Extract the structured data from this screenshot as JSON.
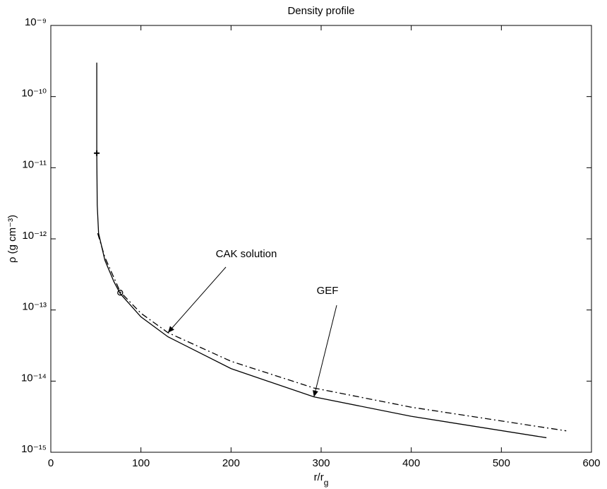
{
  "chart_data": {
    "type": "line",
    "title": "Density profile",
    "xlabel": {
      "text": "r/r",
      "sub": "g"
    },
    "ylabel": "ρ (g cm⁻³)",
    "xlim": [
      0,
      600
    ],
    "xticks": [
      0,
      100,
      200,
      300,
      400,
      500,
      600
    ],
    "ylim": [
      1e-15,
      1e-09
    ],
    "yscale": "log",
    "yticks": [
      {
        "value": 1e-15,
        "label": "10⁻¹⁵"
      },
      {
        "value": 1e-14,
        "label": "10⁻¹⁴"
      },
      {
        "value": 1e-13,
        "label": "10⁻¹³"
      },
      {
        "value": 1e-12,
        "label": "10⁻¹²"
      },
      {
        "value": 1e-11,
        "label": "10⁻¹¹"
      },
      {
        "value": 1e-10,
        "label": "10⁻¹⁰"
      },
      {
        "value": 1e-09,
        "label": "10⁻⁹"
      }
    ],
    "series": [
      {
        "name": "GEF",
        "color": "#000000",
        "dash": "solid",
        "x": [
          51,
          51,
          51.5,
          53,
          60,
          70,
          77,
          100,
          130,
          200,
          292,
          400,
          550
        ],
        "values": [
          3e-10,
          1.6e-11,
          3e-12,
          1.2e-12,
          5e-13,
          2.5e-13,
          1.7e-13,
          8e-14,
          4.2e-14,
          1.5e-14,
          6e-15,
          3.2e-15,
          1.6e-15
        ]
      },
      {
        "name": "CAK solution",
        "color": "#000000",
        "dash": "dashdot",
        "x": [
          52,
          60,
          77,
          100,
          130,
          200,
          292,
          400,
          572
        ],
        "values": [
          1.2e-12,
          5.5e-13,
          1.8e-13,
          9e-14,
          4.8e-14,
          1.9e-14,
          8e-15,
          4.3e-15,
          2e-15
        ]
      }
    ],
    "markers": [
      {
        "symbol": "+",
        "x": 51,
        "y": 1.6e-11
      },
      {
        "symbol": "o",
        "x": 77,
        "y": 1.75e-13
      }
    ]
  }
}
